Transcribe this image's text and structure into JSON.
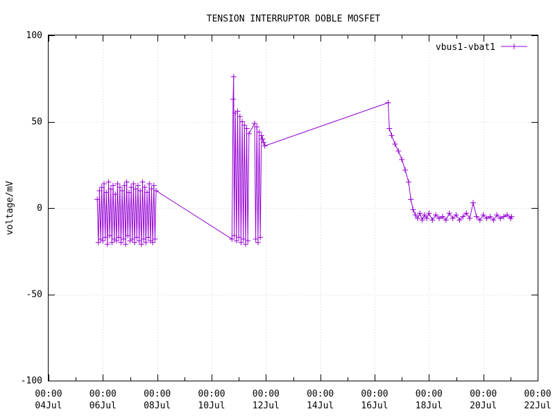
{
  "chart_data": {
    "type": "line",
    "title": "TENSION INTERRUPTOR DOBLE MOSFET",
    "xlabel": "",
    "ylabel": "voltage/mV",
    "ylim": [
      -100,
      100
    ],
    "yticks": [
      -100,
      -50,
      0,
      50,
      100
    ],
    "xlim": [
      "2024-07-04",
      "2024-07-22"
    ],
    "xticks": [
      {
        "date": "2024-07-04",
        "time": "00:00",
        "day": "04Jul"
      },
      {
        "date": "2024-07-06",
        "time": "00:00",
        "day": "06Jul"
      },
      {
        "date": "2024-07-08",
        "time": "00:00",
        "day": "08Jul"
      },
      {
        "date": "2024-07-10",
        "time": "00:00",
        "day": "10Jul"
      },
      {
        "date": "2024-07-12",
        "time": "00:00",
        "day": "12Jul"
      },
      {
        "date": "2024-07-14",
        "time": "00:00",
        "day": "14Jul"
      },
      {
        "date": "2024-07-16",
        "time": "00:00",
        "day": "16Jul"
      },
      {
        "date": "2024-07-18",
        "time": "00:00",
        "day": "18Jul"
      },
      {
        "date": "2024-07-20",
        "time": "00:00",
        "day": "20Jul"
      },
      {
        "date": "2024-07-22",
        "time": "00:00",
        "day": "22Jul"
      }
    ],
    "grid": true,
    "legend_position": "top-right",
    "series": [
      {
        "name": "vbus1-vbat1",
        "color": "#9400d3",
        "marker": "plus",
        "points": [
          [
            "2024-07-05 19:00",
            5
          ],
          [
            "2024-07-05 20:00",
            -20
          ],
          [
            "2024-07-05 21:00",
            10
          ],
          [
            "2024-07-05 22:00",
            -18
          ],
          [
            "2024-07-05 23:00",
            12
          ],
          [
            "2024-07-06 00:00",
            -19
          ],
          [
            "2024-07-06 01:00",
            14
          ],
          [
            "2024-07-06 02:00",
            -17
          ],
          [
            "2024-07-06 03:00",
            9
          ],
          [
            "2024-07-06 04:00",
            -21
          ],
          [
            "2024-07-06 05:00",
            15
          ],
          [
            "2024-07-06 06:00",
            -16
          ],
          [
            "2024-07-06 07:00",
            11
          ],
          [
            "2024-07-06 08:00",
            -20
          ],
          [
            "2024-07-06 09:00",
            13
          ],
          [
            "2024-07-06 10:00",
            -18
          ],
          [
            "2024-07-06 11:00",
            8
          ],
          [
            "2024-07-06 12:00",
            -19
          ],
          [
            "2024-07-06 13:00",
            14
          ],
          [
            "2024-07-06 14:00",
            -17
          ],
          [
            "2024-07-06 15:00",
            12
          ],
          [
            "2024-07-06 16:00",
            -20
          ],
          [
            "2024-07-06 17:00",
            10
          ],
          [
            "2024-07-06 18:00",
            -18
          ],
          [
            "2024-07-06 19:00",
            13
          ],
          [
            "2024-07-06 20:00",
            -21
          ],
          [
            "2024-07-06 21:00",
            15
          ],
          [
            "2024-07-06 22:00",
            -16
          ],
          [
            "2024-07-06 23:00",
            9
          ],
          [
            "2024-07-07 00:00",
            -19
          ],
          [
            "2024-07-07 01:00",
            12
          ],
          [
            "2024-07-07 02:00",
            -18
          ],
          [
            "2024-07-07 03:00",
            14
          ],
          [
            "2024-07-07 04:00",
            -20
          ],
          [
            "2024-07-07 05:00",
            11
          ],
          [
            "2024-07-07 06:00",
            -17
          ],
          [
            "2024-07-07 07:00",
            13
          ],
          [
            "2024-07-07 08:00",
            -19
          ],
          [
            "2024-07-07 09:00",
            10
          ],
          [
            "2024-07-07 10:00",
            -21
          ],
          [
            "2024-07-07 11:00",
            15
          ],
          [
            "2024-07-07 12:00",
            -18
          ],
          [
            "2024-07-07 13:00",
            12
          ],
          [
            "2024-07-07 14:00",
            -20
          ],
          [
            "2024-07-07 15:00",
            9
          ],
          [
            "2024-07-07 16:00",
            -17
          ],
          [
            "2024-07-07 17:00",
            14
          ],
          [
            "2024-07-07 18:00",
            -19
          ],
          [
            "2024-07-07 19:00",
            11
          ],
          [
            "2024-07-07 20:00",
            -20
          ],
          [
            "2024-07-07 21:00",
            13
          ],
          [
            "2024-07-07 22:00",
            -18
          ],
          [
            "2024-07-07 23:00",
            10
          ],
          [
            "2024-07-10 18:00",
            -18
          ],
          [
            "2024-07-10 19:00",
            63
          ],
          [
            "2024-07-10 19:30",
            76
          ],
          [
            "2024-07-10 20:00",
            -16
          ],
          [
            "2024-07-10 21:00",
            55
          ],
          [
            "2024-07-10 22:00",
            -19
          ],
          [
            "2024-07-10 23:00",
            56
          ],
          [
            "2024-07-11 00:00",
            -17
          ],
          [
            "2024-07-11 01:00",
            53
          ],
          [
            "2024-07-11 02:00",
            -20
          ],
          [
            "2024-07-11 03:00",
            50
          ],
          [
            "2024-07-11 04:00",
            -18
          ],
          [
            "2024-07-11 05:00",
            48
          ],
          [
            "2024-07-11 06:00",
            -21
          ],
          [
            "2024-07-11 07:00",
            46
          ],
          [
            "2024-07-11 08:00",
            -19
          ],
          [
            "2024-07-11 09:00",
            43
          ],
          [
            "2024-07-11 14:00",
            49
          ],
          [
            "2024-07-11 15:00",
            -18
          ],
          [
            "2024-07-11 16:00",
            47
          ],
          [
            "2024-07-11 17:00",
            -20
          ],
          [
            "2024-07-11 18:00",
            44
          ],
          [
            "2024-07-11 19:00",
            -17
          ],
          [
            "2024-07-11 20:00",
            42
          ],
          [
            "2024-07-11 21:00",
            40
          ],
          [
            "2024-07-11 22:00",
            38
          ],
          [
            "2024-07-11 23:00",
            36
          ],
          [
            "2024-07-16 12:00",
            61
          ],
          [
            "2024-07-16 13:00",
            46
          ],
          [
            "2024-07-16 15:00",
            42
          ],
          [
            "2024-07-16 18:00",
            37
          ],
          [
            "2024-07-16 21:00",
            33
          ],
          [
            "2024-07-17 00:00",
            28
          ],
          [
            "2024-07-17 03:00",
            22
          ],
          [
            "2024-07-17 06:00",
            15
          ],
          [
            "2024-07-17 08:00",
            5
          ],
          [
            "2024-07-17 10:00",
            -1
          ],
          [
            "2024-07-17 12:00",
            -4
          ],
          [
            "2024-07-17 14:00",
            -6
          ],
          [
            "2024-07-17 16:00",
            -3
          ],
          [
            "2024-07-17 18:00",
            -7
          ],
          [
            "2024-07-17 20:00",
            -4
          ],
          [
            "2024-07-17 22:00",
            -6
          ],
          [
            "2024-07-18 00:00",
            -3
          ],
          [
            "2024-07-18 03:00",
            -7
          ],
          [
            "2024-07-18 06:00",
            -4
          ],
          [
            "2024-07-18 09:00",
            -6
          ],
          [
            "2024-07-18 12:00",
            -5
          ],
          [
            "2024-07-18 15:00",
            -7
          ],
          [
            "2024-07-18 18:00",
            -3
          ],
          [
            "2024-07-18 21:00",
            -6
          ],
          [
            "2024-07-19 00:00",
            -4
          ],
          [
            "2024-07-19 03:00",
            -7
          ],
          [
            "2024-07-19 06:00",
            -5
          ],
          [
            "2024-07-19 09:00",
            -3
          ],
          [
            "2024-07-19 12:00",
            -6
          ],
          [
            "2024-07-19 15:00",
            3
          ],
          [
            "2024-07-19 18:00",
            -5
          ],
          [
            "2024-07-19 21:00",
            -7
          ],
          [
            "2024-07-20 00:00",
            -4
          ],
          [
            "2024-07-20 03:00",
            -6
          ],
          [
            "2024-07-20 06:00",
            -5
          ],
          [
            "2024-07-20 09:00",
            -7
          ],
          [
            "2024-07-20 12:00",
            -4
          ],
          [
            "2024-07-20 15:00",
            -6
          ],
          [
            "2024-07-20 18:00",
            -5
          ],
          [
            "2024-07-20 21:00",
            -4
          ],
          [
            "2024-07-21 00:00",
            -6
          ],
          [
            "2024-07-21 01:00",
            -5
          ]
        ]
      }
    ]
  }
}
